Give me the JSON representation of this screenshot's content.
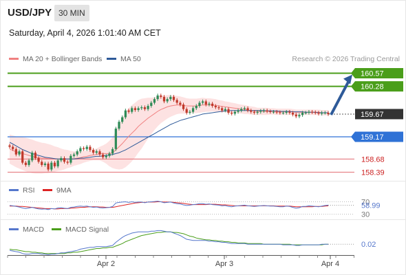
{
  "header": {
    "symbol": "USD/JPY",
    "interval": "30 MIN",
    "datetime": "Saturday, April 4, 2026 1:01:40 AM CET",
    "credit": "Research © 2026 Trading Central"
  },
  "colors": {
    "ma20": "#f08080",
    "ma50": "#2e5a99",
    "bands_fill": "#fde2e2",
    "resistance": "#4a9e1a",
    "pivot": "#2f72d6",
    "support": "#e8848a",
    "arrow": "#2e5a99",
    "last_price_bg": "#333333",
    "rsi": "#5577cc",
    "rsi_ma": "#dd2222",
    "macd": "#5577cc",
    "macd_signal": "#4a9e1a"
  },
  "chart_data": [
    {
      "type": "candlestick",
      "x_ticks": [
        "Apr 2",
        "Apr 3",
        "Apr 4"
      ],
      "legend": [
        "MA 20 + Bollinger Bands",
        "MA 50"
      ],
      "ylim": [
        158.2,
        160.7
      ],
      "levels": [
        {
          "value": 160.57,
          "label": "160.57",
          "kind": "resistance"
        },
        {
          "value": 160.28,
          "label": "160.28",
          "kind": "resistance"
        },
        {
          "value": 159.67,
          "label": "159.67",
          "kind": "last"
        },
        {
          "value": 159.17,
          "label": "159.17",
          "kind": "pivot"
        },
        {
          "value": 158.68,
          "label": "158.68",
          "kind": "support"
        },
        {
          "value": 158.39,
          "label": "158.39",
          "kind": "support"
        }
      ],
      "close": [
        158.95,
        158.9,
        158.78,
        158.85,
        158.6,
        158.55,
        158.65,
        158.82,
        158.7,
        158.62,
        158.55,
        158.58,
        158.45,
        158.6,
        158.52,
        158.65,
        158.7,
        158.62,
        158.6,
        158.75,
        158.78,
        158.85,
        158.92,
        158.9,
        158.95,
        158.88,
        158.82,
        158.85,
        158.78,
        158.72,
        158.75,
        158.8,
        158.9,
        159.35,
        159.5,
        159.6,
        159.75,
        159.72,
        159.8,
        159.76,
        159.8,
        159.82,
        159.78,
        159.85,
        159.92,
        160.0,
        160.08,
        160.05,
        159.95,
        160.0,
        160.05,
        159.98,
        159.92,
        159.88,
        159.78,
        159.7,
        159.72,
        159.8,
        159.85,
        159.92,
        159.95,
        159.88,
        159.9,
        159.85,
        159.82,
        159.8,
        159.75,
        159.78,
        159.7,
        159.68,
        159.72,
        159.75,
        159.78,
        159.8,
        159.75,
        159.72,
        159.7,
        159.72,
        159.74,
        159.75,
        159.73,
        159.72,
        159.72,
        159.71,
        159.7,
        159.7,
        159.72,
        159.7,
        159.66,
        159.62,
        159.65,
        159.7,
        159.7,
        159.72,
        159.71,
        159.7,
        159.68,
        159.7,
        159.7,
        159.67
      ],
      "ma20": [
        158.9,
        158.87,
        158.84,
        158.82,
        158.8,
        158.78,
        158.76,
        158.74,
        158.72,
        158.71,
        158.7,
        158.7,
        158.69,
        158.69,
        158.68,
        158.68,
        158.67,
        158.67,
        158.68,
        158.68,
        158.69,
        158.7,
        158.71,
        158.73,
        158.74,
        158.76,
        158.77,
        158.78,
        158.8,
        158.8,
        158.8,
        158.8,
        158.82,
        158.88,
        158.95,
        159.02,
        159.1,
        159.18,
        159.25,
        159.32,
        159.4,
        159.46,
        159.52,
        159.58,
        159.63,
        159.68,
        159.73,
        159.77,
        159.8,
        159.83,
        159.85,
        159.86,
        159.87,
        159.87,
        159.86,
        159.85,
        159.85,
        159.85,
        159.85,
        159.86,
        159.87,
        159.87,
        159.87,
        159.87,
        159.86,
        159.85,
        159.84,
        159.83,
        159.82,
        159.81,
        159.8,
        159.79,
        159.78,
        159.77,
        159.76,
        159.75,
        159.74,
        159.73,
        159.73,
        159.73,
        159.73,
        159.73,
        159.73,
        159.72,
        159.72,
        159.72,
        159.72,
        159.72,
        159.72,
        159.71,
        159.71,
        159.71,
        159.71,
        159.71,
        159.71,
        159.71,
        159.71,
        159.7,
        159.7,
        159.7
      ],
      "ma50": [
        159.05,
        159.01,
        158.97,
        158.93,
        158.89,
        158.86,
        158.83,
        158.8,
        158.78,
        158.76,
        158.74,
        158.72,
        158.71,
        158.7,
        158.69,
        158.68,
        158.68,
        158.68,
        158.68,
        158.68,
        158.68,
        158.69,
        158.7,
        158.7,
        158.71,
        158.72,
        158.73,
        158.74,
        158.74,
        158.75,
        158.76,
        158.77,
        158.78,
        158.8,
        158.82,
        158.85,
        158.88,
        158.92,
        158.96,
        159.0,
        159.04,
        159.08,
        159.12,
        159.16,
        159.2,
        159.24,
        159.28,
        159.32,
        159.36,
        159.4,
        159.44,
        159.47,
        159.5,
        159.53,
        159.55,
        159.57,
        159.59,
        159.61,
        159.63,
        159.65,
        159.67,
        159.68,
        159.69,
        159.7,
        159.71,
        159.72,
        159.73,
        159.74,
        159.74,
        159.75,
        159.75,
        159.75,
        159.75,
        159.75,
        159.75,
        159.75,
        159.75,
        159.75,
        159.75,
        159.75,
        159.74,
        159.74,
        159.74,
        159.74,
        159.73,
        159.73,
        159.73,
        159.73,
        159.72,
        159.72,
        159.72,
        159.72,
        159.71,
        159.71,
        159.71,
        159.71,
        159.7,
        159.7,
        159.7,
        159.7
      ],
      "band_width": [
        0.32,
        0.33,
        0.34,
        0.35,
        0.36,
        0.37,
        0.37,
        0.37,
        0.36,
        0.35,
        0.34,
        0.33,
        0.32,
        0.3,
        0.28,
        0.26,
        0.24,
        0.22,
        0.2,
        0.18,
        0.16,
        0.15,
        0.14,
        0.13,
        0.12,
        0.12,
        0.12,
        0.13,
        0.15,
        0.18,
        0.22,
        0.28,
        0.34,
        0.42,
        0.5,
        0.56,
        0.6,
        0.62,
        0.62,
        0.6,
        0.58,
        0.55,
        0.5,
        0.45,
        0.4,
        0.36,
        0.33,
        0.3,
        0.28,
        0.26,
        0.24,
        0.22,
        0.2,
        0.19,
        0.18,
        0.17,
        0.16,
        0.16,
        0.16,
        0.16,
        0.16,
        0.15,
        0.15,
        0.14,
        0.14,
        0.13,
        0.13,
        0.12,
        0.12,
        0.11,
        0.11,
        0.1,
        0.1,
        0.1,
        0.09,
        0.09,
        0.09,
        0.08,
        0.08,
        0.08,
        0.08,
        0.07,
        0.07,
        0.07,
        0.07,
        0.07,
        0.07,
        0.07,
        0.06,
        0.06,
        0.06,
        0.06,
        0.06,
        0.06,
        0.06,
        0.06,
        0.06,
        0.06,
        0.06,
        0.06
      ],
      "forecast": {
        "from": 159.67,
        "to": 160.57
      }
    },
    {
      "type": "line",
      "name": "RSI",
      "legend": [
        "RSI",
        "9MA"
      ],
      "levels": [
        "70",
        "30"
      ],
      "last_value": "58.99",
      "ylim": [
        20,
        80
      ],
      "rsi": [
        58,
        57,
        55,
        53,
        50,
        48,
        50,
        52,
        49,
        47,
        46,
        47,
        45,
        48,
        47,
        50,
        51,
        49,
        48,
        52,
        53,
        55,
        56,
        55,
        56,
        54,
        52,
        53,
        51,
        50,
        51,
        52,
        55,
        66,
        68,
        69,
        70,
        68,
        70,
        68,
        69,
        69,
        67,
        69,
        70,
        71,
        72,
        70,
        67,
        68,
        69,
        66,
        64,
        63,
        60,
        58,
        59,
        61,
        62,
        64,
        64,
        62,
        63,
        61,
        60,
        59,
        57,
        58,
        55,
        54,
        56,
        57,
        58,
        59,
        57,
        56,
        55,
        56,
        57,
        58,
        57,
        56,
        56,
        55,
        54,
        54,
        56,
        55,
        52,
        49,
        51,
        55,
        55,
        57,
        56,
        55,
        54,
        56,
        58,
        59
      ],
      "ma9": [
        56,
        56,
        56,
        55,
        55,
        54,
        53,
        52,
        51,
        50,
        49,
        48,
        48,
        48,
        47,
        47,
        48,
        48,
        48,
        49,
        50,
        51,
        52,
        52,
        53,
        54,
        54,
        54,
        53,
        53,
        52,
        52,
        52,
        54,
        56,
        58,
        60,
        62,
        64,
        66,
        67,
        68,
        68,
        69,
        69,
        69,
        70,
        70,
        69,
        69,
        69,
        68,
        67,
        66,
        65,
        63,
        62,
        61,
        61,
        61,
        61,
        61,
        62,
        62,
        62,
        61,
        60,
        60,
        59,
        58,
        57,
        57,
        57,
        57,
        57,
        57,
        57,
        57,
        57,
        57,
        57,
        57,
        57,
        56,
        56,
        56,
        56,
        56,
        55,
        54,
        54,
        54,
        54,
        54,
        54,
        55,
        55,
        55,
        56,
        57
      ]
    },
    {
      "type": "line",
      "name": "MACD",
      "legend": [
        "MACD",
        "MACD Signal"
      ],
      "last_value": "0.02",
      "ylim": [
        -0.35,
        0.35
      ],
      "macd": [
        -0.08,
        -0.09,
        -0.1,
        -0.11,
        -0.13,
        -0.14,
        -0.14,
        -0.13,
        -0.13,
        -0.13,
        -0.14,
        -0.14,
        -0.15,
        -0.14,
        -0.14,
        -0.13,
        -0.12,
        -0.12,
        -0.11,
        -0.1,
        -0.09,
        -0.08,
        -0.06,
        -0.05,
        -0.04,
        -0.03,
        -0.03,
        -0.02,
        -0.02,
        -0.02,
        -0.02,
        -0.01,
        0.0,
        0.05,
        0.09,
        0.13,
        0.16,
        0.18,
        0.2,
        0.21,
        0.22,
        0.22,
        0.22,
        0.22,
        0.23,
        0.23,
        0.24,
        0.24,
        0.23,
        0.22,
        0.22,
        0.2,
        0.18,
        0.16,
        0.13,
        0.1,
        0.09,
        0.08,
        0.08,
        0.08,
        0.08,
        0.08,
        0.07,
        0.07,
        0.06,
        0.06,
        0.05,
        0.05,
        0.04,
        0.03,
        0.03,
        0.03,
        0.03,
        0.03,
        0.02,
        0.02,
        0.02,
        0.02,
        0.02,
        0.02,
        0.02,
        0.02,
        0.02,
        0.02,
        0.02,
        0.01,
        0.01,
        0.01,
        0.01,
        0.0,
        0.0,
        0.01,
        0.01,
        0.01,
        0.01,
        0.01,
        0.01,
        0.02,
        0.02,
        0.02
      ],
      "signal": [
        -0.06,
        -0.07,
        -0.07,
        -0.08,
        -0.09,
        -0.1,
        -0.1,
        -0.11,
        -0.11,
        -0.12,
        -0.12,
        -0.13,
        -0.13,
        -0.13,
        -0.13,
        -0.13,
        -0.13,
        -0.13,
        -0.12,
        -0.12,
        -0.11,
        -0.11,
        -0.1,
        -0.09,
        -0.08,
        -0.07,
        -0.06,
        -0.05,
        -0.05,
        -0.04,
        -0.04,
        -0.03,
        -0.03,
        -0.01,
        0.01,
        0.03,
        0.06,
        0.08,
        0.1,
        0.12,
        0.14,
        0.16,
        0.17,
        0.18,
        0.19,
        0.2,
        0.21,
        0.21,
        0.22,
        0.22,
        0.22,
        0.21,
        0.21,
        0.2,
        0.19,
        0.17,
        0.15,
        0.14,
        0.12,
        0.11,
        0.1,
        0.09,
        0.09,
        0.08,
        0.08,
        0.07,
        0.07,
        0.06,
        0.06,
        0.05,
        0.05,
        0.04,
        0.04,
        0.04,
        0.03,
        0.03,
        0.03,
        0.03,
        0.03,
        0.02,
        0.02,
        0.02,
        0.02,
        0.02,
        0.02,
        0.02,
        0.02,
        0.02,
        0.01,
        0.01,
        0.01,
        0.01,
        0.01,
        0.01,
        0.01,
        0.01,
        0.01,
        0.01,
        0.02,
        0.02
      ]
    }
  ]
}
